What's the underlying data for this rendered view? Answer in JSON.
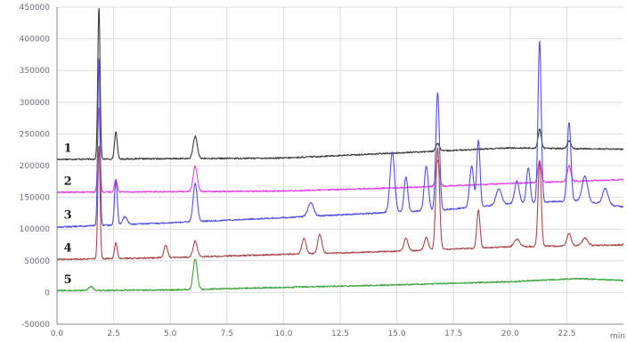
{
  "chart_data": {
    "type": "line",
    "title": "",
    "xlabel": "min",
    "ylabel": "",
    "xlim": [
      0,
      25.0
    ],
    "ylim": [
      -50000,
      450000
    ],
    "grid": true,
    "x_ticks": [
      {
        "value": 0,
        "label": "0.0"
      },
      {
        "value": 2.5,
        "label": "2.5"
      },
      {
        "value": 5.0,
        "label": "5.0"
      },
      {
        "value": 7.5,
        "label": "7.5"
      },
      {
        "value": 10.0,
        "label": "10.0"
      },
      {
        "value": 12.5,
        "label": "12.5"
      },
      {
        "value": 15.0,
        "label": "15.0"
      },
      {
        "value": 17.5,
        "label": "17.5"
      },
      {
        "value": 20.0,
        "label": "20.0"
      },
      {
        "value": 22.5,
        "label": "22.5"
      }
    ],
    "y_ticks": [
      {
        "value": -50000,
        "label": "-50000"
      },
      {
        "value": 0,
        "label": "0"
      },
      {
        "value": 50000,
        "label": "50000"
      },
      {
        "value": 100000,
        "label": "100000"
      },
      {
        "value": 150000,
        "label": "150000"
      },
      {
        "value": 200000,
        "label": "200000"
      },
      {
        "value": 250000,
        "label": "250000"
      },
      {
        "value": 300000,
        "label": "300000"
      },
      {
        "value": 350000,
        "label": "350000"
      },
      {
        "value": 400000,
        "label": "400000"
      },
      {
        "value": 450000,
        "label": "450000"
      }
    ],
    "series": [
      {
        "name": "1",
        "color": "#3a3a3a",
        "baseline": [
          [
            0,
            210000
          ],
          [
            10,
            212000
          ],
          [
            15,
            220000
          ],
          [
            20,
            228000
          ],
          [
            25,
            226000
          ]
        ],
        "peaks": [
          {
            "x": 1.85,
            "h": 240000,
            "w": 0.05
          },
          {
            "x": 2.6,
            "h": 42000,
            "w": 0.06
          },
          {
            "x": 6.1,
            "h": 35000,
            "w": 0.09
          },
          {
            "x": 16.8,
            "h": 12000,
            "w": 0.08
          },
          {
            "x": 21.3,
            "h": 30000,
            "w": 0.07
          },
          {
            "x": 22.6,
            "h": 12000,
            "w": 0.08
          }
        ]
      },
      {
        "name": "2",
        "color": "#e23de2",
        "baseline": [
          [
            0,
            158000
          ],
          [
            10,
            160000
          ],
          [
            15,
            165000
          ],
          [
            20,
            172000
          ],
          [
            25,
            178000
          ]
        ],
        "peaks": [
          {
            "x": 1.85,
            "h": 135000,
            "w": 0.05
          },
          {
            "x": 2.6,
            "h": 20000,
            "w": 0.06
          },
          {
            "x": 6.1,
            "h": 40000,
            "w": 0.09
          },
          {
            "x": 16.8,
            "h": 40000,
            "w": 0.08
          },
          {
            "x": 21.3,
            "h": 35000,
            "w": 0.07
          },
          {
            "x": 22.6,
            "h": 25000,
            "w": 0.08
          }
        ]
      },
      {
        "name": "3",
        "color": "#5050e0",
        "baseline": [
          [
            0,
            103000
          ],
          [
            5,
            110000
          ],
          [
            10,
            118000
          ],
          [
            14,
            125000
          ],
          [
            17,
            130000
          ],
          [
            20,
            140000
          ],
          [
            23,
            145000
          ],
          [
            25,
            135000
          ]
        ],
        "peaks": [
          {
            "x": 1.85,
            "h": 265000,
            "w": 0.05
          },
          {
            "x": 2.6,
            "h": 70000,
            "w": 0.06
          },
          {
            "x": 3.0,
            "h": 12000,
            "w": 0.1
          },
          {
            "x": 6.1,
            "h": 60000,
            "w": 0.09
          },
          {
            "x": 11.2,
            "h": 22000,
            "w": 0.12
          },
          {
            "x": 14.8,
            "h": 95000,
            "w": 0.1
          },
          {
            "x": 15.4,
            "h": 55000,
            "w": 0.08
          },
          {
            "x": 16.3,
            "h": 70000,
            "w": 0.09
          },
          {
            "x": 16.8,
            "h": 185000,
            "w": 0.08
          },
          {
            "x": 18.3,
            "h": 65000,
            "w": 0.09
          },
          {
            "x": 18.6,
            "h": 105000,
            "w": 0.07
          },
          {
            "x": 19.5,
            "h": 25000,
            "w": 0.12
          },
          {
            "x": 20.3,
            "h": 35000,
            "w": 0.1
          },
          {
            "x": 20.8,
            "h": 55000,
            "w": 0.08
          },
          {
            "x": 21.3,
            "h": 255000,
            "w": 0.07
          },
          {
            "x": 22.6,
            "h": 125000,
            "w": 0.08
          },
          {
            "x": 23.3,
            "h": 40000,
            "w": 0.12
          },
          {
            "x": 24.2,
            "h": 25000,
            "w": 0.12
          }
        ]
      },
      {
        "name": "4",
        "color": "#a84848",
        "baseline": [
          [
            0,
            52000
          ],
          [
            5,
            55000
          ],
          [
            10,
            60000
          ],
          [
            15,
            65000
          ],
          [
            20,
            72000
          ],
          [
            25,
            75000
          ]
        ],
        "peaks": [
          {
            "x": 1.85,
            "h": 180000,
            "w": 0.05
          },
          {
            "x": 2.6,
            "h": 25000,
            "w": 0.06
          },
          {
            "x": 4.8,
            "h": 20000,
            "w": 0.08
          },
          {
            "x": 6.1,
            "h": 25000,
            "w": 0.09
          },
          {
            "x": 10.9,
            "h": 25000,
            "w": 0.09
          },
          {
            "x": 11.6,
            "h": 30000,
            "w": 0.09
          },
          {
            "x": 15.4,
            "h": 20000,
            "w": 0.09
          },
          {
            "x": 16.3,
            "h": 20000,
            "w": 0.09
          },
          {
            "x": 16.8,
            "h": 160000,
            "w": 0.08
          },
          {
            "x": 18.6,
            "h": 60000,
            "w": 0.07
          },
          {
            "x": 20.3,
            "h": 12000,
            "w": 0.12
          },
          {
            "x": 21.3,
            "h": 135000,
            "w": 0.07
          },
          {
            "x": 22.6,
            "h": 20000,
            "w": 0.09
          },
          {
            "x": 23.3,
            "h": 12000,
            "w": 0.12
          }
        ]
      },
      {
        "name": "5",
        "color": "#3aa23a",
        "baseline": [
          [
            0,
            3000
          ],
          [
            5,
            4000
          ],
          [
            10,
            8000
          ],
          [
            15,
            12000
          ],
          [
            20,
            17000
          ],
          [
            23,
            22000
          ],
          [
            25,
            19000
          ]
        ],
        "peaks": [
          {
            "x": 1.5,
            "h": 6000,
            "w": 0.1
          },
          {
            "x": 6.1,
            "h": 48000,
            "w": 0.09
          }
        ]
      }
    ]
  }
}
